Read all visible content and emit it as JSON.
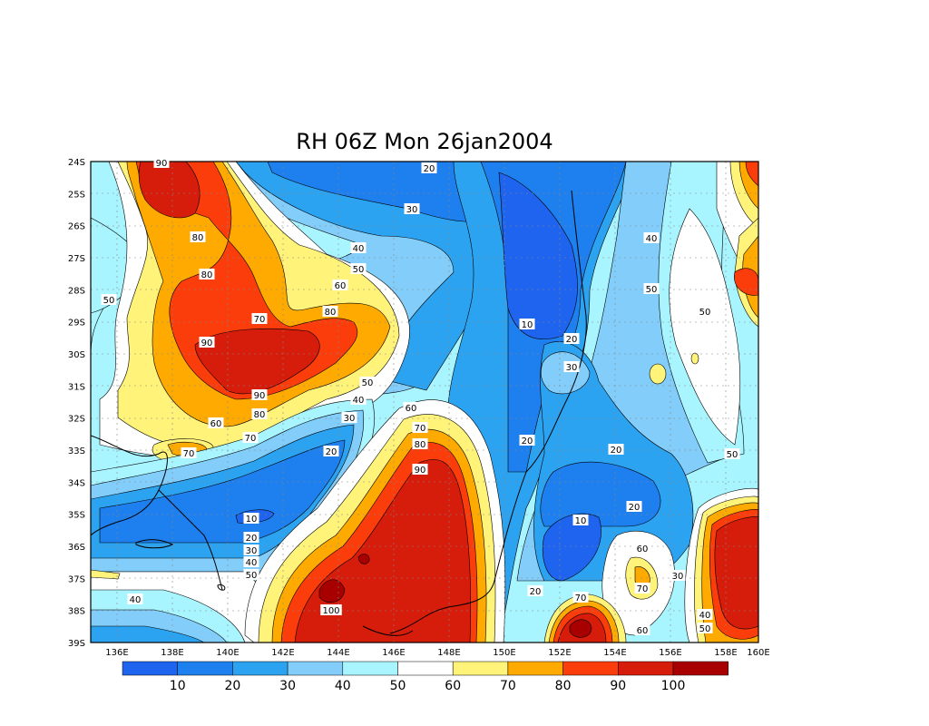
{
  "title": "RH 06Z Mon 26jan2004",
  "map": {
    "lon_labels": [
      "136E",
      "138E",
      "140E",
      "142E",
      "144E",
      "146E",
      "148E",
      "150E",
      "152E",
      "154E",
      "156E",
      "158E",
      "160E"
    ],
    "lat_labels": [
      "24S",
      "25S",
      "26S",
      "27S",
      "28S",
      "29S",
      "30S",
      "31S",
      "32S",
      "33S",
      "34S",
      "35S",
      "36S",
      "37S",
      "38S",
      "39S"
    ]
  },
  "palette": {
    "c_0_10": "#1f64ef",
    "c_10_20": "#1e7fee",
    "c_20_30": "#2ca3f1",
    "c_30_40": "#82cdfa",
    "c_40_50": "#a8f4ff",
    "c_50_60": "#ffffff",
    "c_60_70": "#fff37a",
    "c_70_80": "#ffaa00",
    "c_80_90": "#fb3d0c",
    "c_90_100": "#d61c0a",
    "c_100_plus": "#a80000"
  },
  "colorbar": {
    "labels": [
      "10",
      "20",
      "30",
      "40",
      "50",
      "60",
      "70",
      "80",
      "90",
      "100"
    ]
  },
  "contour_labels": [
    {
      "id": "l1",
      "text": "90"
    },
    {
      "id": "l2",
      "text": "20"
    },
    {
      "id": "l3",
      "text": "30"
    },
    {
      "id": "l4",
      "text": "80"
    },
    {
      "id": "l5",
      "text": "40"
    },
    {
      "id": "l6",
      "text": "50"
    },
    {
      "id": "l7",
      "text": "40"
    },
    {
      "id": "l8",
      "text": "80"
    },
    {
      "id": "l9",
      "text": "60"
    },
    {
      "id": "l10",
      "text": "50"
    },
    {
      "id": "l11",
      "text": "50"
    },
    {
      "id": "l12",
      "text": "70"
    },
    {
      "id": "l13",
      "text": "80"
    },
    {
      "id": "l14",
      "text": "10"
    },
    {
      "id": "l15",
      "text": "50"
    },
    {
      "id": "l16",
      "text": "90"
    },
    {
      "id": "l17",
      "text": "20"
    },
    {
      "id": "l18",
      "text": "30"
    },
    {
      "id": "l19",
      "text": "50"
    },
    {
      "id": "l20",
      "text": "40"
    },
    {
      "id": "l21",
      "text": "90"
    },
    {
      "id": "l22",
      "text": "60"
    },
    {
      "id": "l23",
      "text": "30"
    },
    {
      "id": "l24",
      "text": "80"
    },
    {
      "id": "l25",
      "text": "60"
    },
    {
      "id": "l26",
      "text": "70"
    },
    {
      "id": "l27",
      "text": "70"
    },
    {
      "id": "l28",
      "text": "80"
    },
    {
      "id": "l29",
      "text": "70"
    },
    {
      "id": "l30",
      "text": "20"
    },
    {
      "id": "l31",
      "text": "20"
    },
    {
      "id": "l32",
      "text": "90"
    },
    {
      "id": "l33",
      "text": "20"
    },
    {
      "id": "l34",
      "text": "50"
    },
    {
      "id": "l35",
      "text": "10"
    },
    {
      "id": "l36",
      "text": "20"
    },
    {
      "id": "l37",
      "text": "10"
    },
    {
      "id": "l38",
      "text": "20"
    },
    {
      "id": "l39",
      "text": "30"
    },
    {
      "id": "l40",
      "text": "40"
    },
    {
      "id": "l41",
      "text": "50"
    },
    {
      "id": "l42",
      "text": "60"
    },
    {
      "id": "l43",
      "text": "70"
    },
    {
      "id": "l44",
      "text": "30"
    },
    {
      "id": "l45",
      "text": "20"
    },
    {
      "id": "l46",
      "text": "70"
    },
    {
      "id": "l47",
      "text": "40"
    },
    {
      "id": "l48",
      "text": "100"
    },
    {
      "id": "l49",
      "text": "40"
    },
    {
      "id": "l50",
      "text": "50"
    },
    {
      "id": "l51",
      "text": "60"
    }
  ]
}
